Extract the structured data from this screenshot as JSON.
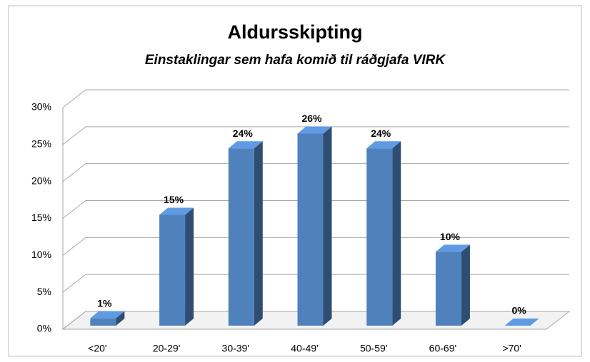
{
  "chart_data": {
    "type": "bar3d",
    "title": "Aldursskipting",
    "subtitle": "Einstaklingar sem hafa komið til ráðgjafa VIRK",
    "categories": [
      "<20'",
      "20-29'",
      "30-39'",
      "40-49'",
      "50-59'",
      "60-69'",
      ">70'"
    ],
    "values": [
      1,
      15,
      24,
      26,
      24,
      10,
      0
    ],
    "value_labels": [
      "1%",
      "15%",
      "24%",
      "26%",
      "24%",
      "10%",
      "0%"
    ],
    "color": "#4f81bd",
    "ylim": [
      0,
      30
    ],
    "yticks": [
      {
        "value": 0,
        "label": "0%"
      },
      {
        "value": 5,
        "label": "5%"
      },
      {
        "value": 10,
        "label": "10%"
      },
      {
        "value": 15,
        "label": "15%"
      },
      {
        "value": 20,
        "label": "20%"
      },
      {
        "value": 25,
        "label": "25%"
      },
      {
        "value": 30,
        "label": "30%"
      }
    ],
    "grid": true
  }
}
